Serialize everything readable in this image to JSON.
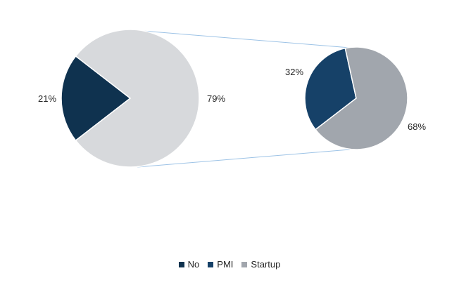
{
  "chart_data": {
    "type": "pie",
    "subtype": "pie-of-pie",
    "colors": {
      "No": "#0f324f",
      "PMI": "#164168",
      "Startup_main": "#d7d9dc",
      "Startup_sub": "#a1a6ad",
      "connector": "#9dc3e6",
      "text": "#262626"
    },
    "main_pie": {
      "slices": [
        {
          "name": "No",
          "value": 21,
          "label": "21%"
        },
        {
          "name": "Startup",
          "value": 79,
          "label": "79%"
        }
      ]
    },
    "secondary_pie": {
      "slices": [
        {
          "name": "PMI",
          "value": 32,
          "label": "32%"
        },
        {
          "name": "Startup",
          "value": 68,
          "label": "68%"
        }
      ]
    },
    "legend": {
      "position": "bottom",
      "entries": [
        "No",
        "PMI",
        "Startup"
      ]
    }
  }
}
